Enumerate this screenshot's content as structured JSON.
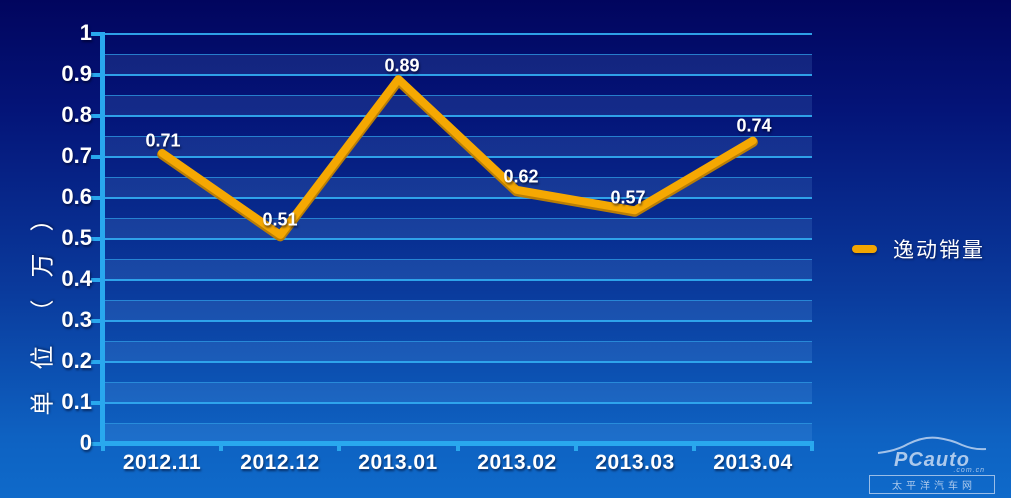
{
  "chart_data": {
    "type": "line",
    "categories": [
      "2012.11",
      "2012.12",
      "2013.01",
      "2013.02",
      "2013.03",
      "2013.04"
    ],
    "series": [
      {
        "name": "逸动销量",
        "values": [
          0.71,
          0.51,
          0.89,
          0.62,
          0.57,
          0.74
        ]
      }
    ],
    "value_labels": [
      "0.71",
      "0.51",
      "0.89",
      "0.62",
      "0.57",
      "0.74"
    ],
    "title": "",
    "xlabel": "",
    "ylabel": "单位（万）",
    "ylim": [
      0,
      1
    ],
    "y_tick_labels": [
      "1",
      "0.9",
      "0.8",
      "0.7",
      "0.6",
      "0.5",
      "0.4",
      "0.3",
      "0.2",
      "0.1",
      "0"
    ],
    "y_major_step": 0.1,
    "y_minor_step": 0.05,
    "grid": true,
    "legend_position": "right",
    "line_color": "#f5a802"
  },
  "legend": {
    "series_label": "逸动销量"
  },
  "watermark": {
    "brand": "PCauto",
    "domain": ".com.cn",
    "caption": "太平洋汽车网"
  },
  "colors": {
    "background_top": "#01055e",
    "background_bottom": "#0f6aca",
    "axis": "#29a8ee",
    "gridline": "#30a8ee",
    "line": "#f5a802",
    "text": "#ffffff"
  }
}
